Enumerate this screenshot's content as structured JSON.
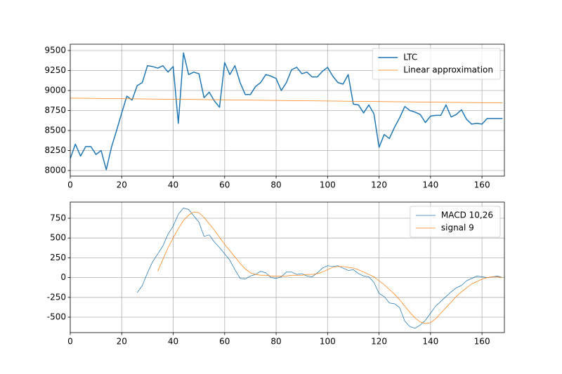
{
  "chart_data": [
    {
      "type": "line",
      "grid": true,
      "legend": "upper right",
      "xlim": [
        0,
        168.7
      ],
      "xticks": [
        0,
        20,
        40,
        60,
        80,
        100,
        120,
        140,
        160
      ],
      "ylim": [
        7930,
        9579
      ],
      "yticks": [
        8000,
        8250,
        8500,
        8750,
        9000,
        9250,
        9500
      ],
      "x": [
        0,
        2,
        4,
        6,
        8,
        10,
        12,
        14,
        16,
        18,
        20,
        22,
        24,
        26,
        28,
        30,
        32,
        34,
        36,
        38,
        40,
        42,
        44,
        46,
        48,
        50,
        52,
        54,
        56,
        58,
        60,
        62,
        64,
        66,
        68,
        70,
        72,
        74,
        76,
        78,
        80,
        82,
        84,
        86,
        88,
        90,
        92,
        94,
        96,
        98,
        100,
        102,
        104,
        106,
        108,
        110,
        112,
        114,
        116,
        118,
        120,
        122,
        124,
        126,
        128,
        130,
        132,
        134,
        136,
        138,
        140,
        142,
        144,
        146,
        148,
        150,
        152,
        154,
        156,
        158,
        160,
        162,
        164,
        166,
        168
      ],
      "series": [
        {
          "name": "LTC",
          "color": "#1f77b4",
          "width": 1.5,
          "values": [
            8150,
            8330,
            8180,
            8300,
            8300,
            8200,
            8250,
            8010,
            8290,
            8500,
            8720,
            8930,
            8880,
            9060,
            9100,
            9310,
            9300,
            9280,
            9310,
            9230,
            9300,
            8590,
            9470,
            9200,
            9230,
            9210,
            8910,
            8980,
            8870,
            8790,
            9350,
            9200,
            9310,
            9100,
            8950,
            8950,
            9050,
            9100,
            9200,
            9180,
            9150,
            9000,
            9100,
            9260,
            9290,
            9210,
            9230,
            9170,
            9170,
            9240,
            9290,
            9180,
            9100,
            9080,
            9200,
            8830,
            8820,
            8720,
            8820,
            8710,
            8290,
            8450,
            8400,
            8540,
            8660,
            8800,
            8750,
            8730,
            8700,
            8600,
            8680,
            8690,
            8690,
            8820,
            8670,
            8700,
            8760,
            8640,
            8580,
            8590,
            8580,
            8650,
            8650,
            8650,
            8650
          ]
        },
        {
          "name": "Linear approximation",
          "color": "#ff7f0e",
          "width": 0.75,
          "x": [
            0,
            168
          ],
          "values": [
            8905,
            8845
          ]
        }
      ]
    },
    {
      "type": "line",
      "grid": true,
      "legend": "upper right",
      "xlim": [
        0,
        168.7
      ],
      "xticks": [
        0,
        20,
        40,
        60,
        80,
        100,
        120,
        140,
        160
      ],
      "ylim": [
        -695,
        954
      ],
      "yticks": [
        -500,
        -250,
        0,
        250,
        500,
        750
      ],
      "x": [
        26,
        28,
        30,
        32,
        34,
        36,
        38,
        40,
        42,
        44,
        46,
        48,
        50,
        52,
        54,
        56,
        58,
        60,
        62,
        64,
        66,
        68,
        70,
        72,
        74,
        76,
        78,
        80,
        82,
        84,
        86,
        88,
        90,
        92,
        94,
        96,
        98,
        100,
        102,
        104,
        106,
        108,
        110,
        112,
        114,
        116,
        118,
        120,
        122,
        124,
        126,
        128,
        130,
        132,
        134,
        136,
        138,
        140,
        142,
        144,
        146,
        148,
        150,
        152,
        154,
        156,
        158,
        160,
        162,
        164,
        166,
        168
      ],
      "series": [
        {
          "name": "MACD 10,26",
          "color": "#1f77b4",
          "width": 0.75,
          "values": [
            -190,
            -100,
            60,
            200,
            300,
            400,
            550,
            650,
            800,
            880,
            860,
            780,
            700,
            520,
            540,
            450,
            380,
            300,
            220,
            100,
            -10,
            -20,
            20,
            40,
            80,
            60,
            0,
            -10,
            10,
            70,
            70,
            40,
            50,
            20,
            10,
            60,
            120,
            150,
            140,
            150,
            120,
            90,
            100,
            50,
            20,
            10,
            -60,
            -200,
            -240,
            -320,
            -330,
            -380,
            -550,
            -620,
            -640,
            -600,
            -540,
            -450,
            -360,
            -300,
            -240,
            -180,
            -130,
            -100,
            -40,
            -10,
            20,
            10,
            0,
            10,
            20,
            0
          ]
        },
        {
          "name": "signal 9",
          "color": "#ff7f0e",
          "width": 0.75,
          "values": [
            null,
            null,
            null,
            null,
            80,
            230,
            380,
            500,
            620,
            720,
            790,
            830,
            820,
            760,
            680,
            600,
            510,
            420,
            340,
            260,
            180,
            110,
            60,
            40,
            30,
            30,
            20,
            20,
            20,
            20,
            30,
            30,
            30,
            40,
            40,
            50,
            70,
            100,
            130,
            140,
            140,
            130,
            120,
            100,
            70,
            40,
            10,
            -40,
            -90,
            -150,
            -210,
            -280,
            -360,
            -440,
            -510,
            -560,
            -580,
            -570,
            -520,
            -450,
            -380,
            -310,
            -240,
            -180,
            -130,
            -80,
            -50,
            -20,
            0,
            10,
            10,
            0
          ]
        }
      ]
    }
  ]
}
